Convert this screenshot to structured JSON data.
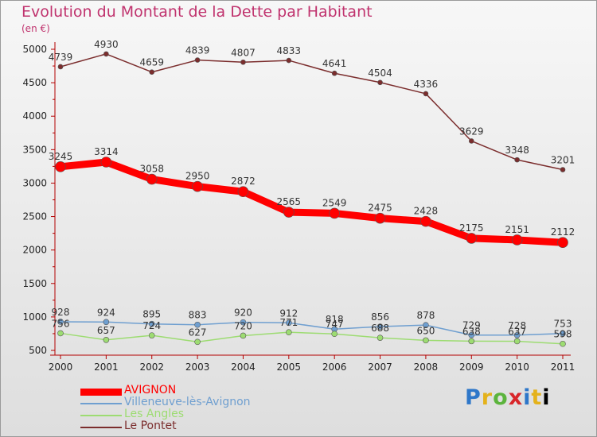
{
  "header": {
    "title": "Evolution du Montant de la Dette par Habitant",
    "subtitle": "(en €)"
  },
  "logo": {
    "text": "Proxiti"
  },
  "chart_data": {
    "type": "line",
    "title": "Evolution du Montant de la Dette par Habitant",
    "subtitle": "(en €)",
    "x": [
      "2000",
      "2001",
      "2002",
      "2003",
      "2004",
      "2005",
      "2006",
      "2007",
      "2008",
      "2009",
      "2010",
      "2011"
    ],
    "ylim": [
      500,
      5000
    ],
    "yticks": [
      500,
      1000,
      1500,
      2000,
      2500,
      3000,
      3500,
      4000,
      4500,
      5000
    ],
    "grid": false,
    "legend_position": "bottom-left",
    "series": [
      {
        "name": "AVIGNON",
        "color": "#ff0000",
        "values": [
          3245,
          3314,
          3058,
          2950,
          2872,
          2565,
          2549,
          2475,
          2428,
          2175,
          2151,
          2112
        ]
      },
      {
        "name": "Villeneuve-lès-Avignon",
        "color": "#6f9fd0",
        "values": [
          928,
          924,
          895,
          883,
          920,
          912,
          818,
          856,
          878,
          729,
          728,
          753
        ]
      },
      {
        "name": "Les Angles",
        "color": "#9ddc72",
        "values": [
          756,
          657,
          724,
          627,
          720,
          771,
          747,
          688,
          650,
          638,
          637,
          598
        ]
      },
      {
        "name": "Le Pontet",
        "color": "#7b2d2d",
        "values": [
          4739,
          4930,
          4659,
          4839,
          4807,
          4833,
          4641,
          4504,
          4336,
          3629,
          3348,
          3201
        ]
      }
    ]
  }
}
